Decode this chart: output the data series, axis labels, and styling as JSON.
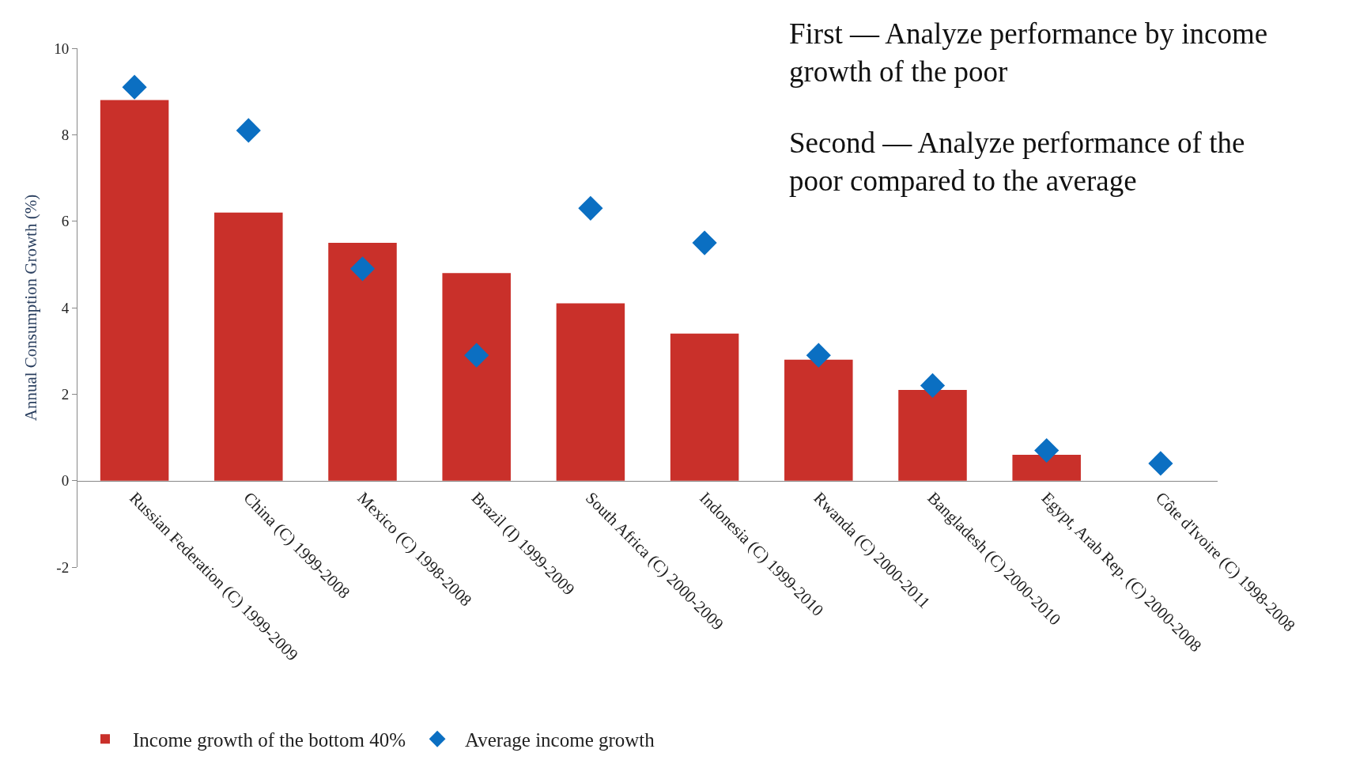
{
  "chart_data": {
    "type": "bar",
    "ylabel": "Annual Consumption Growth (%)",
    "categories": [
      "Russian Federation (C) 1999-2009",
      "China (C) 1999-2008",
      "Mexico (C) 1998-2008",
      "Brazil (I) 1999-2009",
      "South Africa (C) 2000-2009",
      "Indonesia (C) 1999-2010",
      "Rwanda (C) 2000-2011",
      "Bangladesh (C) 2000-2010",
      "Egypt, Arab Rep. (C) 2000-2008",
      "Côte d'Ivoire (C) 1998-2008"
    ],
    "series": [
      {
        "name": "Income growth of the bottom 40%",
        "color": "#c9302a",
        "values": [
          8.8,
          6.2,
          5.5,
          4.8,
          4.1,
          3.4,
          2.8,
          2.1,
          0.6,
          0.0
        ]
      },
      {
        "name": "Average income growth",
        "type": "scatter",
        "marker": "diamond",
        "color": "#0b6fc2",
        "values": [
          9.1,
          8.1,
          4.9,
          2.9,
          6.3,
          5.5,
          2.9,
          2.2,
          0.7,
          0.4
        ]
      }
    ],
    "ylim": [
      -2,
      10
    ],
    "yticks": [
      -2,
      0,
      2,
      4,
      6,
      8,
      10
    ],
    "legend": "bottom",
    "annotations": [
      "First — Analyze performance by income growth of the poor",
      "Second — Analyze performance of the poor compared to the average"
    ]
  }
}
